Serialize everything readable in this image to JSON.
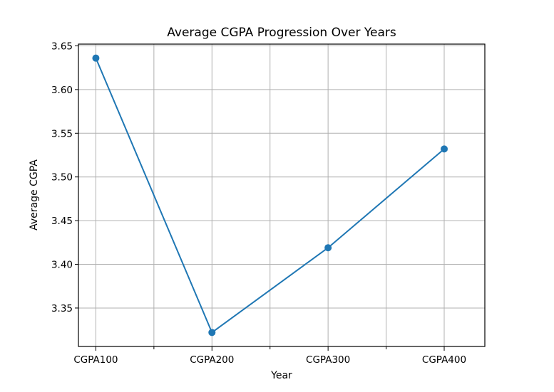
{
  "chart_data": {
    "type": "line",
    "title": "Average CGPA Progression Over Years",
    "xlabel": "Year",
    "ylabel": "Average CGPA",
    "categories": [
      "CGPA100",
      "CGPA200",
      "CGPA300",
      "CGPA400"
    ],
    "values": [
      3.636,
      3.322,
      3.419,
      3.532
    ],
    "ylim": [
      3.306,
      3.652
    ],
    "yticks": [
      "3.35",
      "3.40",
      "3.45",
      "3.50",
      "3.55",
      "3.60",
      "3.65"
    ],
    "grid": true,
    "marker": "circle",
    "color": "#1f77b4"
  }
}
